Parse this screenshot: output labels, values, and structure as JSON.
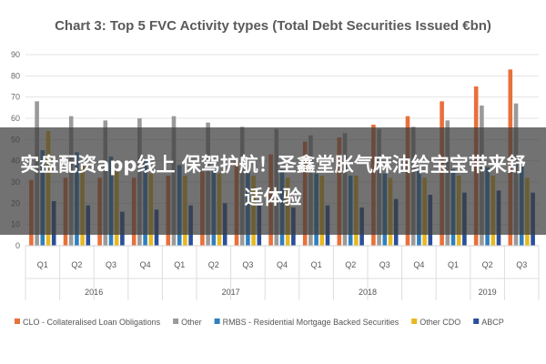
{
  "colors": {
    "CLO": "#e8703a",
    "Other": "#9a9a9a",
    "RMBS": "#2f7fbf",
    "OtherCDO": "#e8b820",
    "ABCP": "#2a4f9a"
  },
  "chart_data": {
    "type": "bar",
    "title": "Chart 3: Top 5 FVC Activity types (Total Debt Securities Issued €bn)",
    "ylim": [
      0,
      90
    ],
    "yticks": [
      0,
      10,
      20,
      30,
      40,
      50,
      60,
      70,
      80,
      90
    ],
    "grid": true,
    "legend_position": "bottom",
    "categories": [
      "Q1",
      "Q2",
      "Q3",
      "Q4",
      "Q1",
      "Q2",
      "Q3",
      "Q4",
      "Q1",
      "Q2",
      "Q3",
      "Q4",
      "Q1",
      "Q2",
      "Q3"
    ],
    "year_groups": [
      {
        "label": "2016",
        "start": 0,
        "end": 3
      },
      {
        "label": "2017",
        "start": 4,
        "end": 7
      },
      {
        "label": "2018",
        "start": 8,
        "end": 11
      },
      {
        "label": "2019",
        "start": 12,
        "end": 14
      }
    ],
    "series": [
      {
        "name": "CLO - Collateralised Loan Obligations",
        "color_key": "CLO",
        "values": [
          31,
          32,
          32,
          32,
          33,
          35,
          40,
          43,
          49,
          51,
          57,
          61,
          68,
          75,
          83
        ]
      },
      {
        "name": "Other",
        "color_key": "Other",
        "values": [
          68,
          61,
          59,
          60,
          61,
          58,
          56,
          55,
          52,
          53,
          55,
          56,
          59,
          66,
          67
        ]
      },
      {
        "name": "RMBS - Residential Mortgage Backed Securities",
        "color_key": "RMBS",
        "values": [
          45,
          44,
          42,
          40,
          38,
          37,
          35,
          36,
          34,
          33,
          34,
          36,
          36,
          37,
          38
        ]
      },
      {
        "name": "Other CDO",
        "color_key": "OtherCDO",
        "values": [
          54,
          38,
          35,
          34,
          33,
          34,
          33,
          32,
          33,
          33,
          32,
          32,
          33,
          33,
          32
        ]
      },
      {
        "name": "ABCP",
        "color_key": "ABCP",
        "values": [
          21,
          19,
          16,
          17,
          19,
          20,
          20,
          18,
          19,
          18,
          22,
          24,
          25,
          26,
          25
        ]
      }
    ]
  },
  "banner": {
    "text": "实盘配资app线上 保驾护航！圣鑫堂胀气麻油给宝宝带来舒适体验"
  }
}
